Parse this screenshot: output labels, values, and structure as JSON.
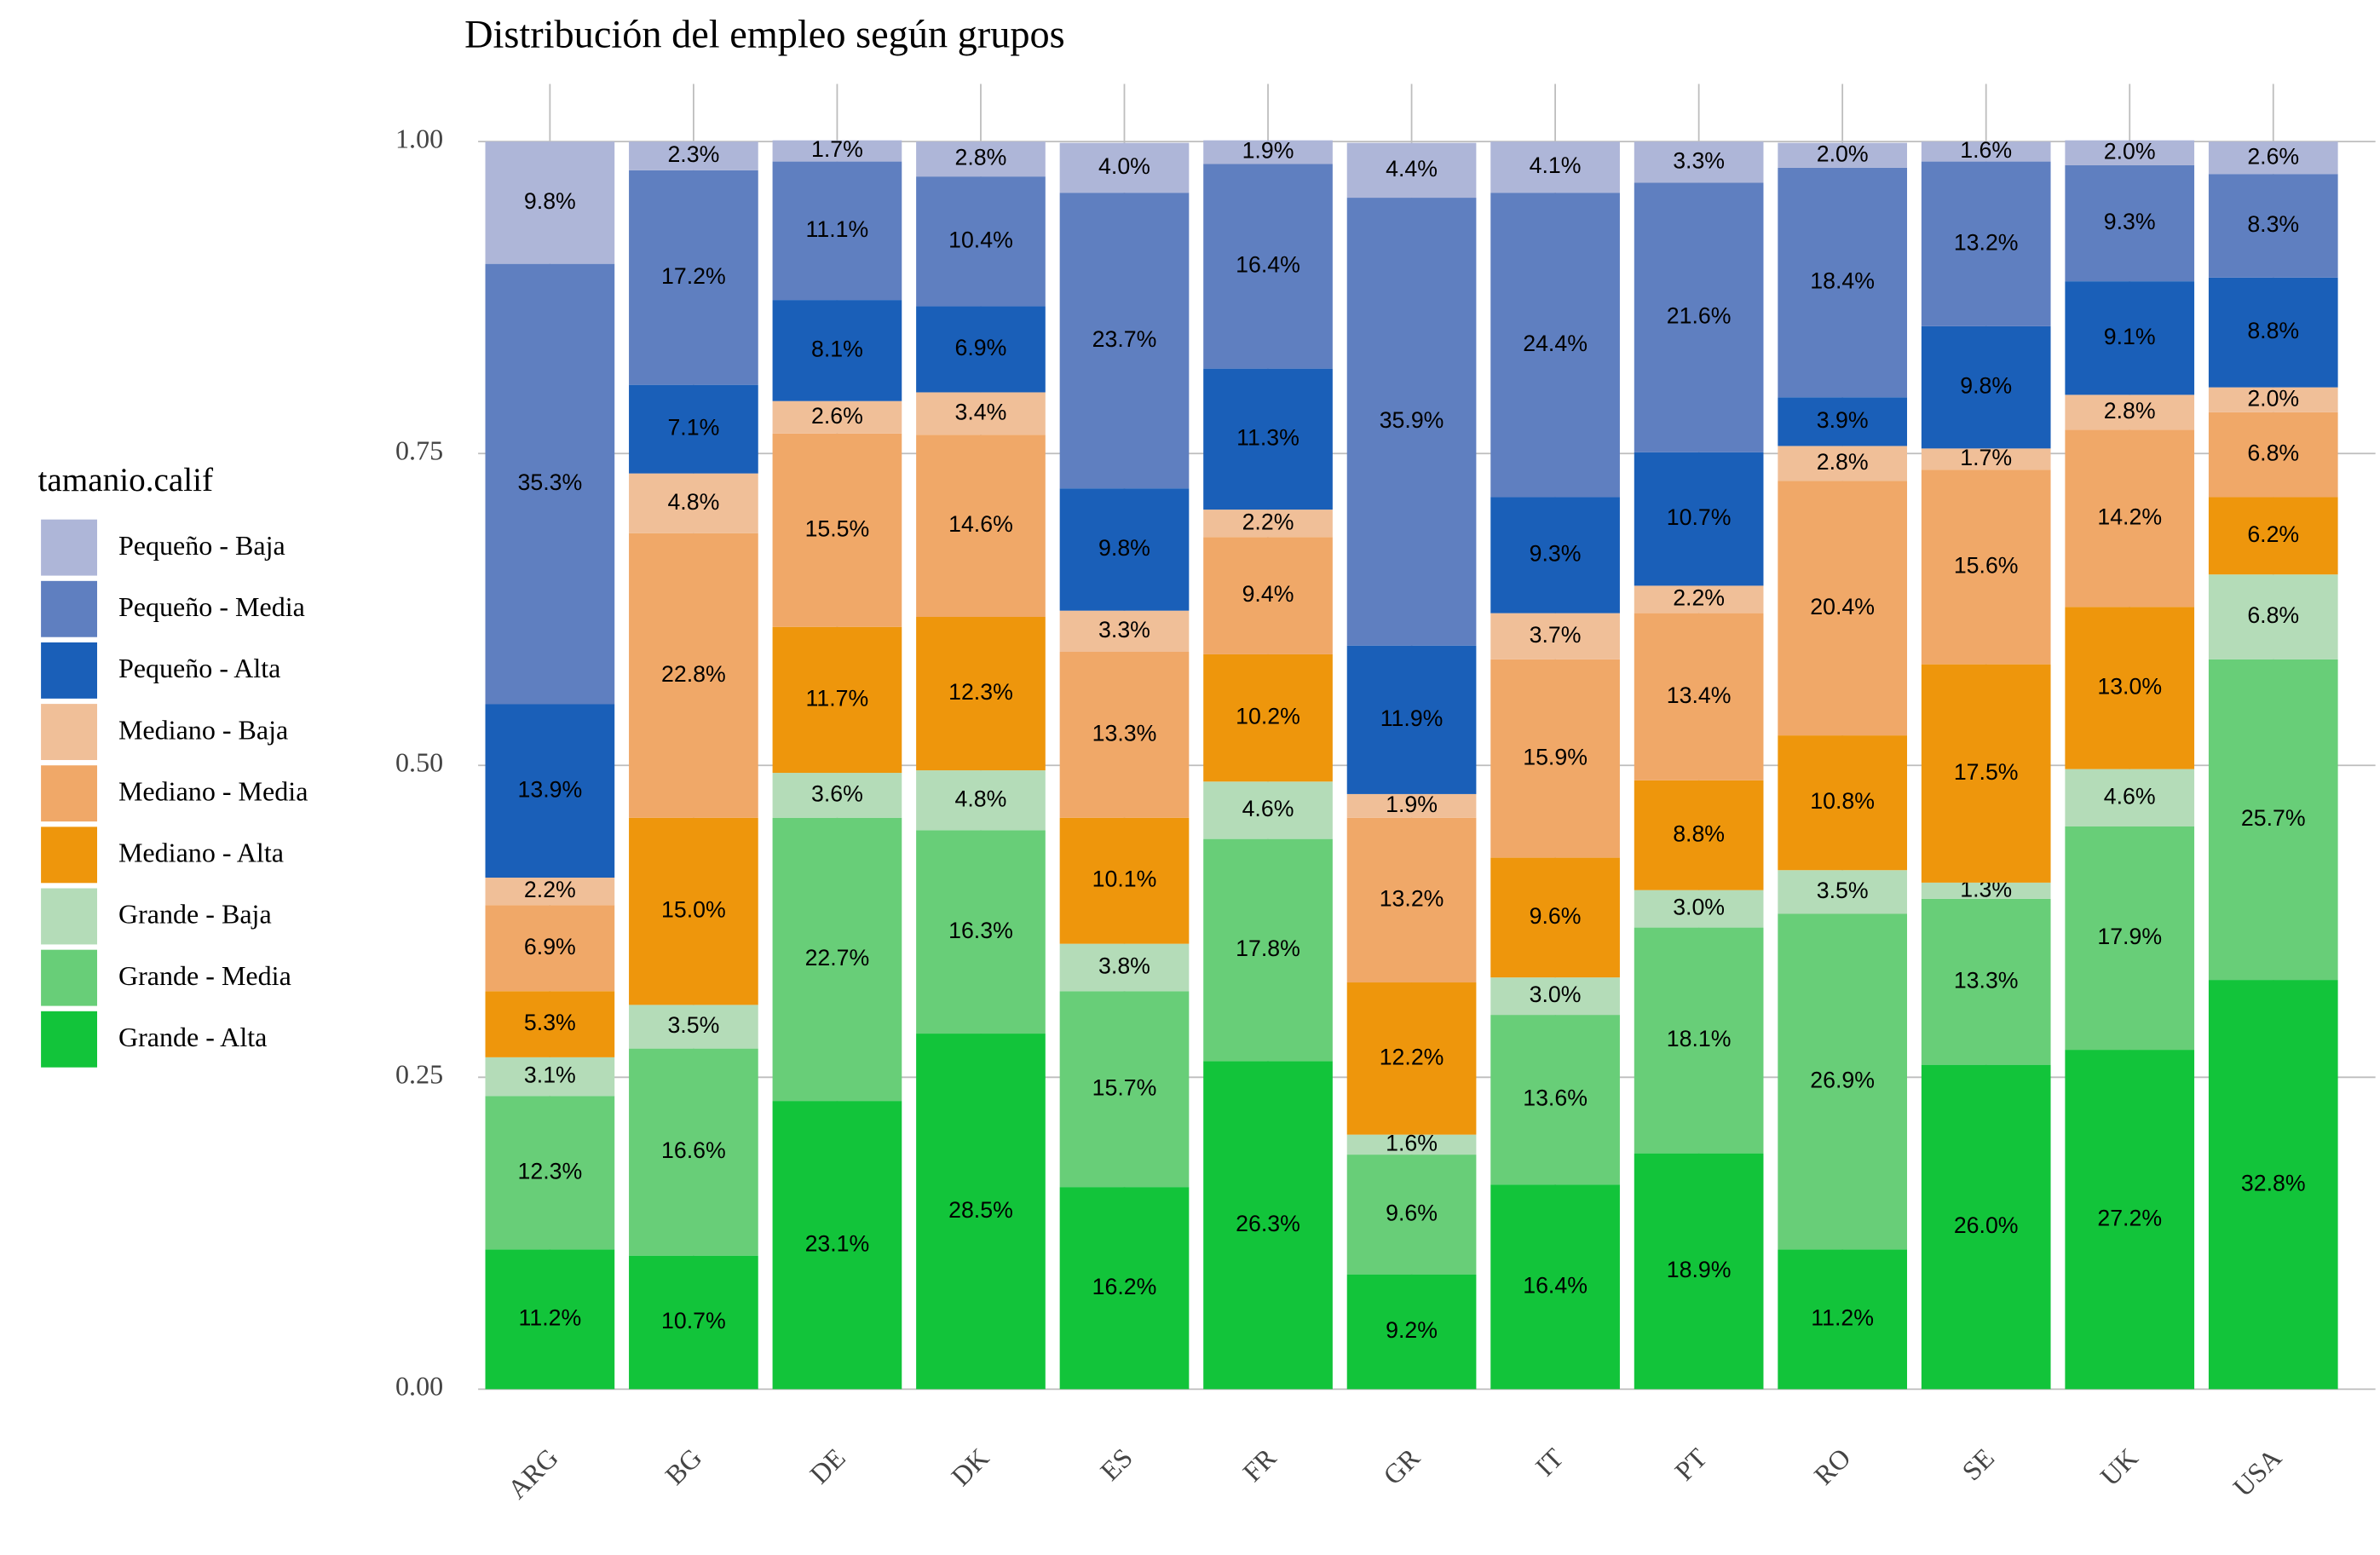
{
  "chart_data": {
    "type": "stacked_bar",
    "title": "Distribución del empleo según grupos",
    "categories": [
      "ARG",
      "BG",
      "DE",
      "DK",
      "ES",
      "FR",
      "GR",
      "IT",
      "PT",
      "RO",
      "SE",
      "UK",
      "USA"
    ],
    "ylim": [
      0,
      1
    ],
    "yticks": [
      {
        "value": 0,
        "label": "0.00"
      },
      {
        "value": 0.25,
        "label": "0.25"
      },
      {
        "value": 0.5,
        "label": "0.50"
      },
      {
        "value": 0.75,
        "label": "0.75"
      },
      {
        "value": 1,
        "label": "1.00"
      }
    ],
    "grid": true,
    "legend_title": "tamanio.calif",
    "legend_position": "left",
    "series": [
      {
        "name": "Pequeño - Baja",
        "color": "#aeb6d8",
        "values": [
          0.098,
          0.023,
          0.017,
          0.028,
          0.04,
          0.019,
          0.044,
          0.041,
          0.033,
          0.02,
          0.016,
          0.02,
          0.026
        ],
        "value_labels": [
          "9.8%",
          "2.3%",
          "1.7%",
          "2.8%",
          "4.0%",
          "1.9%",
          "4.4%",
          "4.1%",
          "3.3%",
          "2.0%",
          "1.6%",
          "2.0%",
          "2.6%"
        ]
      },
      {
        "name": "Pequeño - Media",
        "color": "#5f7fc0",
        "values": [
          0.353,
          0.172,
          0.111,
          0.104,
          0.237,
          0.164,
          0.359,
          0.244,
          0.216,
          0.184,
          0.132,
          0.093,
          0.083
        ],
        "value_labels": [
          "35.3%",
          "17.2%",
          "11.1%",
          "10.4%",
          "23.7%",
          "16.4%",
          "35.9%",
          "24.4%",
          "21.6%",
          "18.4%",
          "13.2%",
          "9.3%",
          "8.3%"
        ]
      },
      {
        "name": "Pequeño - Alta",
        "color": "#1a5fb8",
        "values": [
          0.139,
          0.071,
          0.081,
          0.069,
          0.098,
          0.113,
          0.119,
          0.093,
          0.107,
          0.039,
          0.098,
          0.091,
          0.088
        ],
        "value_labels": [
          "13.9%",
          "7.1%",
          "8.1%",
          "6.9%",
          "9.8%",
          "11.3%",
          "11.9%",
          "9.3%",
          "10.7%",
          "3.9%",
          "9.8%",
          "9.1%",
          "8.8%"
        ]
      },
      {
        "name": "Mediano - Baja",
        "color": "#f0bf98",
        "values": [
          0.022,
          0.048,
          0.026,
          0.034,
          0.033,
          0.022,
          0.019,
          0.037,
          0.022,
          0.028,
          0.017,
          0.028,
          0.02
        ],
        "value_labels": [
          "2.2%",
          "4.8%",
          "2.6%",
          "3.4%",
          "3.3%",
          "2.2%",
          "1.9%",
          "3.7%",
          "2.2%",
          "2.8%",
          "1.7%",
          "2.8%",
          "2.0%"
        ]
      },
      {
        "name": "Mediano - Media",
        "color": "#f0a868",
        "values": [
          0.069,
          0.228,
          0.155,
          0.146,
          0.133,
          0.094,
          0.132,
          0.159,
          0.134,
          0.204,
          0.156,
          0.142,
          0.068
        ],
        "value_labels": [
          "6.9%",
          "22.8%",
          "15.5%",
          "14.6%",
          "13.3%",
          "9.4%",
          "13.2%",
          "15.9%",
          "13.4%",
          "20.4%",
          "15.6%",
          "14.2%",
          "6.8%"
        ]
      },
      {
        "name": "Mediano - Alta",
        "color": "#ee960c",
        "values": [
          0.053,
          0.15,
          0.117,
          0.123,
          0.101,
          0.102,
          0.122,
          0.096,
          0.088,
          0.108,
          0.175,
          0.13,
          0.062
        ],
        "value_labels": [
          "5.3%",
          "15.0%",
          "11.7%",
          "12.3%",
          "10.1%",
          "10.2%",
          "12.2%",
          "9.6%",
          "8.8%",
          "10.8%",
          "17.5%",
          "13.0%",
          "6.2%"
        ]
      },
      {
        "name": "Grande - Baja",
        "color": "#b4dcb8",
        "values": [
          0.031,
          0.035,
          0.036,
          0.048,
          0.038,
          0.046,
          0.016,
          0.03,
          0.03,
          0.035,
          0.013,
          0.046,
          0.068
        ],
        "value_labels": [
          "3.1%",
          "3.5%",
          "3.6%",
          "4.8%",
          "3.8%",
          "4.6%",
          "1.6%",
          "3.0%",
          "3.0%",
          "3.5%",
          "1.3%",
          "4.6%",
          "6.8%"
        ]
      },
      {
        "name": "Grande - Media",
        "color": "#68ce78",
        "values": [
          0.123,
          0.166,
          0.227,
          0.163,
          0.157,
          0.178,
          0.096,
          0.136,
          0.181,
          0.269,
          0.133,
          0.179,
          0.257
        ],
        "value_labels": [
          "12.3%",
          "16.6%",
          "22.7%",
          "16.3%",
          "15.7%",
          "17.8%",
          "9.6%",
          "13.6%",
          "18.1%",
          "26.9%",
          "13.3%",
          "17.9%",
          "25.7%"
        ]
      },
      {
        "name": "Grande - Alta",
        "color": "#12c43a",
        "values": [
          0.112,
          0.107,
          0.231,
          0.285,
          0.162,
          0.263,
          0.092,
          0.164,
          0.189,
          0.112,
          0.26,
          0.272,
          0.328
        ],
        "value_labels": [
          "11.2%",
          "10.7%",
          "23.1%",
          "28.5%",
          "16.2%",
          "26.3%",
          "9.2%",
          "16.4%",
          "18.9%",
          "11.2%",
          "26.0%",
          "27.2%",
          "32.8%"
        ]
      }
    ]
  }
}
